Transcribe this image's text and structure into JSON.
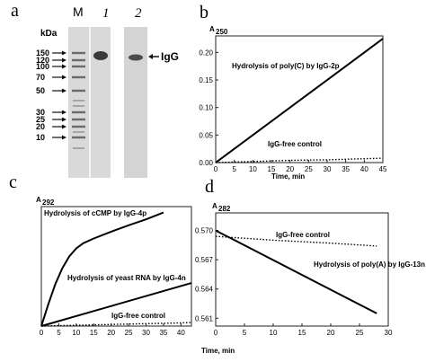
{
  "panels": {
    "a": "a",
    "b": "b",
    "c": "c",
    "d": "d"
  },
  "gel": {
    "unit": "kDa",
    "lanes": [
      "M",
      "1",
      "2"
    ],
    "markers": [
      {
        "label": "150",
        "value": 150
      },
      {
        "label": "120",
        "value": 120
      },
      {
        "label": "100",
        "value": 100
      },
      {
        "label": "70",
        "value": 70
      },
      {
        "label": "50",
        "value": 50
      },
      {
        "label": "30",
        "value": 30
      },
      {
        "label": "25",
        "value": 25
      },
      {
        "label": "20",
        "value": 20
      },
      {
        "label": "10",
        "value": 10
      }
    ],
    "band_label": "IgG",
    "colors": {
      "lane_bg": "#d6d6d6",
      "band": "#3a3a3a"
    }
  },
  "chart_data": [
    {
      "panel": "b",
      "type": "line",
      "ylabel_main": "A",
      "ylabel_sub": "250",
      "xlabel": "Time, min",
      "xlim": [
        0,
        45
      ],
      "ylim": [
        0,
        0.23
      ],
      "xticks": [
        0,
        5,
        10,
        15,
        20,
        25,
        30,
        35,
        40,
        45
      ],
      "yticks": [
        "0.00",
        "0.05",
        "0.10",
        "0.15",
        "0.20"
      ],
      "series": [
        {
          "name": "Hydrolysis of poly(C) by IgG-2p",
          "style": "solid",
          "x": [
            0,
            45
          ],
          "y": [
            0,
            0.225
          ]
        },
        {
          "name": "IgG-free control",
          "style": "dotted",
          "x": [
            0,
            10,
            20,
            30,
            40,
            45
          ],
          "y": [
            0.0,
            0.002,
            0.004,
            0.005,
            0.007,
            0.008
          ]
        }
      ]
    },
    {
      "panel": "c",
      "type": "line",
      "ylabel_main": "A",
      "ylabel_sub": "292",
      "xlabel": "",
      "xlim": [
        0,
        43
      ],
      "ylim": [
        0,
        0.03
      ],
      "xticks": [
        0,
        5,
        10,
        15,
        20,
        25,
        30,
        35,
        40
      ],
      "yticks": [],
      "series": [
        {
          "name": "Hydrolysis of cCMP by IgG-4p",
          "style": "solid",
          "x": [
            0,
            2,
            4,
            6,
            8,
            10,
            12,
            15,
            20,
            25,
            30,
            35
          ],
          "y": [
            0,
            0.0055,
            0.0105,
            0.0145,
            0.0175,
            0.0195,
            0.0208,
            0.022,
            0.0237,
            0.0253,
            0.0268,
            0.0285
          ]
        },
        {
          "name": "Hydrolysis of yeast RNA by IgG-4n",
          "style": "solid",
          "x": [
            0,
            43
          ],
          "y": [
            0,
            0.0108
          ]
        },
        {
          "name": "IgG-free control",
          "style": "dotted",
          "x": [
            0,
            10,
            20,
            30,
            40,
            43
          ],
          "y": [
            0,
            0.0002,
            0.0004,
            0.0006,
            0.0008,
            0.0009
          ]
        }
      ]
    },
    {
      "panel": "d",
      "type": "line",
      "ylabel_main": "A",
      "ylabel_sub": "282",
      "xlabel": "Time, min",
      "xlim": [
        0,
        30
      ],
      "ylim": [
        0.5602,
        0.5718
      ],
      "xticks": [
        0,
        5,
        10,
        15,
        20,
        25,
        30
      ],
      "yticks": [
        "0.570",
        "0.567",
        "0.564",
        "0.561"
      ],
      "series": [
        {
          "name": "Hydrolysis of poly(A) by IgG-13n",
          "style": "solid",
          "x": [
            0,
            28
          ],
          "y": [
            0.57,
            0.5615
          ]
        },
        {
          "name": "IgG-free control",
          "style": "dotted",
          "x": [
            0,
            10,
            20,
            28
          ],
          "y": [
            0.5694,
            0.569,
            0.5687,
            0.5684
          ]
        }
      ]
    }
  ],
  "labels": {
    "b": {
      "curve": "Hydrolysis of poly(C) by IgG-2p",
      "control": "IgG-free control"
    },
    "c": {
      "curve1": "Hydrolysis of cCMP by IgG-4p",
      "curve2": "Hydrolysis of yeast RNA by IgG-4n",
      "control": "IgG-free control"
    },
    "d": {
      "control": "IgG-free control",
      "curve": "Hydrolysis of poly(A) by IgG-13n"
    },
    "time_label": "Time, min"
  }
}
